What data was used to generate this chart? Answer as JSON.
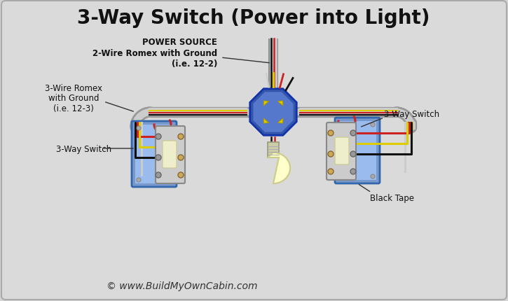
{
  "title": "3-Way Switch (Power into Light)",
  "bg_color": "#d4d4d4",
  "title_fontsize": 20,
  "title_color": "#111111",
  "subtitle": "© www.BuildMyOwnCabin.com",
  "subtitle_fontsize": 10,
  "labels": {
    "power_source": "POWER SOURCE\n2-Wire Romex with Ground\n(i.e. 12-2)",
    "wire_romex": "3-Wire Romex\nwith Ground\n(i.e. 12-3)",
    "switch_left": "3-Way Switch",
    "switch_right": "3-Way Switch",
    "black_tape": "Black Tape"
  },
  "colors": {
    "black_wire": "#111111",
    "red_wire": "#cc2222",
    "white_wire": "#dddddd",
    "yellow_wire": "#ddcc00",
    "box_blue": "#6699cc",
    "box_edge": "#3366aa",
    "junction_box": "#4466bb",
    "conduit_outer": "#aaaaaa",
    "conduit_inner": "#cccccc",
    "switch_body": "#cccccc",
    "switch_edge": "#999999",
    "switch_paddle": "#eeeeaa",
    "bulb_color": "#ffffcc",
    "bulb_outline": "#cccc88",
    "bulb_base": "#ccccaa",
    "wire_nut": "#ddcc00",
    "screw": "#aaaaaa"
  }
}
